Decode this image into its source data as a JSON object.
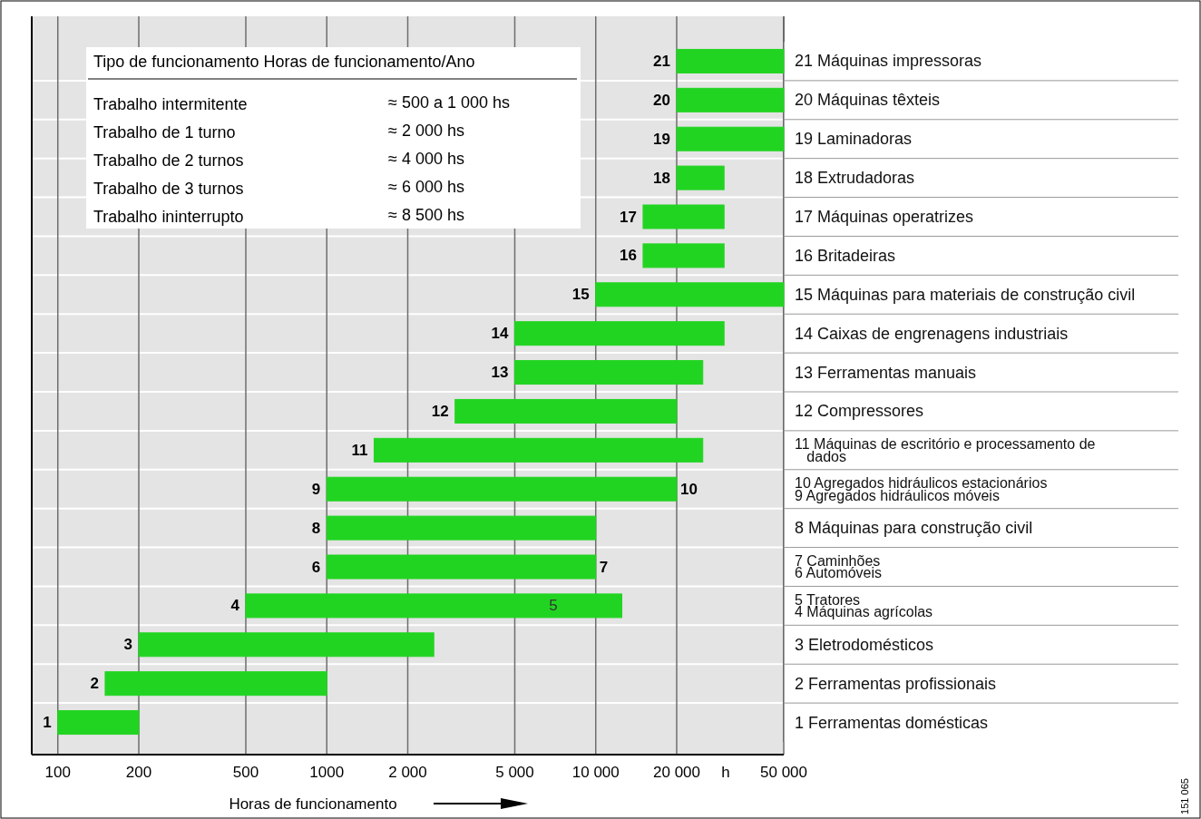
{
  "chart_data": {
    "type": "bar",
    "orientation": "horizontal",
    "log": "x",
    "xlabel": "Horas de funcionamento",
    "categories": [
      "21",
      "20",
      "19",
      "18",
      "17",
      "16",
      "15",
      "14",
      "13",
      "12",
      "11",
      "9",
      "8",
      "6",
      "4",
      "3",
      "2",
      "1"
    ],
    "base": [
      20000,
      20000,
      20000,
      20000,
      15000,
      15000,
      10000,
      5000,
      5000,
      3000,
      1500,
      1000,
      1000,
      1000,
      500,
      200,
      150,
      100
    ],
    "values": [
      30000,
      30000,
      30000,
      10000,
      15000,
      15000,
      40000,
      25000,
      20000,
      17000,
      23500,
      19000,
      9000,
      9000,
      12000,
      2300,
      850,
      100
    ],
    "color": "#22d422",
    "xlim": [
      80,
      50000
    ],
    "xticks": [
      100,
      200,
      500,
      {
        "value": 1000,
        "label": "1000"
      },
      {
        "value": 2000,
        "label": "2 000"
      },
      {
        "value": 5000,
        "label": "5 000"
      },
      {
        "value": 10000,
        "label": "10 000"
      },
      {
        "value": 20000,
        "label": "20 000"
      },
      {
        "value": 50000,
        "label": "50 000"
      }
    ],
    "grid": "x",
    "annotations": [
      "Tipo de funcionamento Horas de funcionamento/Ano",
      "Trabalho intermitente",
      "≈ 500 a 1 000 hs",
      "Trabalho de 1 turno",
      "≈ 2 000 hs",
      "Trabalho de 2 turnos",
      "≈ 4 000 hs",
      "Trabalho de 3 turnos",
      "≈ 6 000 hs",
      "Trabalho ininterrupto",
      "≈ 8 500 hs",
      "h",
      "151 065",
      "21 Máquinas impressoras",
      "20 Máquinas têxteis",
      "19 Laminadoras",
      "18 Extrudadoras",
      "17 Máquinas operatrizes",
      "16 Britadeiras",
      "15 Máquinas para materiais de construção civil",
      "14 Caixas de engrenagens industriais",
      "13 Ferramentas manuais",
      "12 Compressores",
      "11 Máquinas de escritório e processamento de dados",
      "10 Agregados hidráulicos estacionários\n9 Agregados hidráulicos móveis",
      "8 Máquinas para construção civil",
      "7 Caminhões\n6 Automóveis",
      "5 Tratores\n4 Máquinas agrícolas",
      "3 Eletrodomésticos",
      "2 Ferramentas profissionais",
      "1 Ferramentas domésticas",
      {
        "text": "10",
        "x": 20000,
        "y": "9"
      },
      {
        "text": "7",
        "x": 10000,
        "y": "6"
      },
      "5"
    ]
  }
}
